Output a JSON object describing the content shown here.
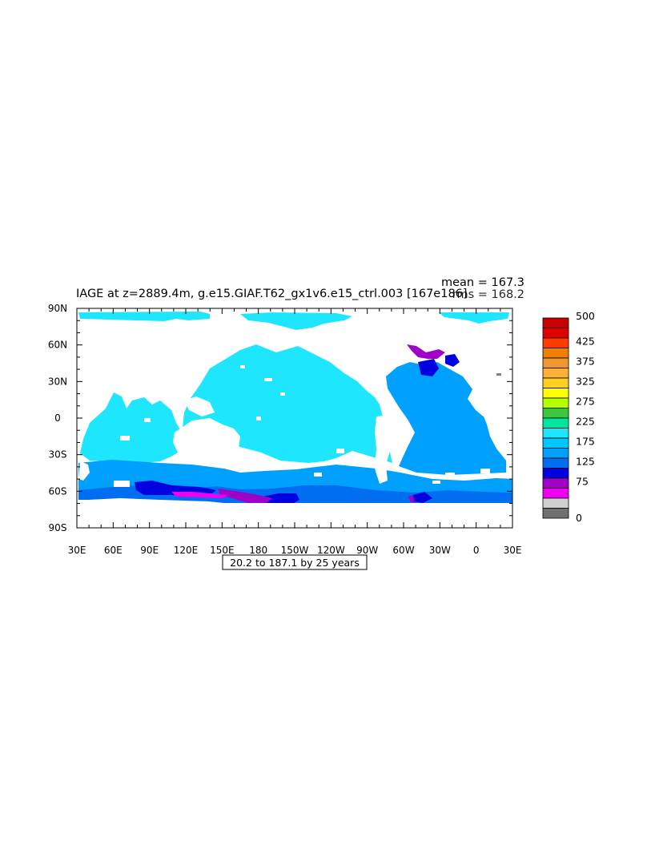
{
  "title": "IAGE at z=2889.4m, g.e15.GIAF.T62_gx1v6.e15_ctrl.003 [167e186]",
  "stats": {
    "mean": "mean = 167.3",
    "rms": "rms = 168.2"
  },
  "footer": "20.2 to 187.1 by 25 years",
  "colors": {
    "ocean_main": "#1ee6ff",
    "ocean_deep": "#00a0ff",
    "ocean_mid": "#006ef0",
    "ocean_low": "#0000e0",
    "purple": "#a000c8",
    "magenta": "#f000f0",
    "land": "#ffffff",
    "gray": "#808080"
  },
  "chart_data": {
    "type": "heatmap",
    "variable": "IAGE",
    "lon_ticks": [
      "30E",
      "60E",
      "90E",
      "120E",
      "150E",
      "180",
      "150W",
      "120W",
      "90W",
      "60W",
      "30W",
      "0",
      "30E"
    ],
    "lat_ticks": [
      "90N",
      "60N",
      "30N",
      "0",
      "30S",
      "60S",
      "90S"
    ],
    "colorbar": {
      "labels": [
        "500",
        "425",
        "375",
        "325",
        "275",
        "225",
        "175",
        "125",
        "75",
        "0"
      ],
      "colors": [
        "#c80000",
        "#e00000",
        "#ff3c00",
        "#f08000",
        "#f09830",
        "#ffb038",
        "#ffd020",
        "#ffff00",
        "#b4ff00",
        "#3cc83c",
        "#00e6a0",
        "#1ee6ff",
        "#00c8ff",
        "#00a0ff",
        "#006ef0",
        "#0000e0",
        "#a000c8",
        "#f000f0",
        "#d0d0d0",
        "#707070"
      ]
    }
  }
}
